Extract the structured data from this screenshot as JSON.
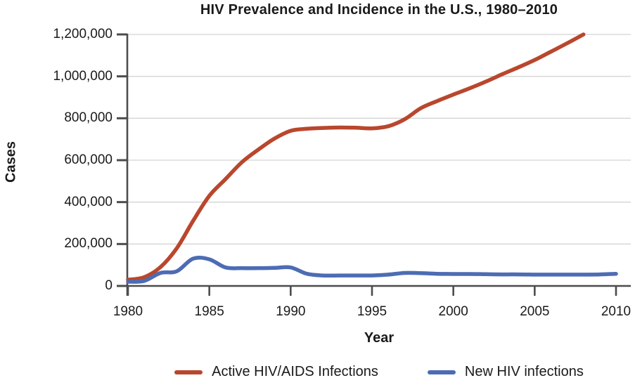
{
  "chart_data": {
    "type": "line",
    "title": "HIV Prevalence and Incidence in the U.S., 1980–2010",
    "xlabel": "Year",
    "ylabel": "Cases",
    "xlim": [
      1980,
      2010
    ],
    "ylim": [
      0,
      1200000
    ],
    "x_ticks": [
      1980,
      1985,
      1990,
      1995,
      2000,
      2005,
      2010
    ],
    "y_ticks": [
      0,
      200000,
      400000,
      600000,
      800000,
      1000000,
      1200000
    ],
    "y_tick_labels": [
      "0",
      "200,000",
      "400,000",
      "600,000",
      "800,000",
      "1,000,000",
      "1,200,000"
    ],
    "grid": "horizontal",
    "grid_color": "#d4d4d4",
    "axis_color": "#4c4c4e",
    "text_color": "#1a1a1a",
    "legend_position": "bottom",
    "series": [
      {
        "id": "active-hiv-aids-infections",
        "name": "Active HIV/AIDS Infections",
        "color": "#b9472d",
        "x": [
          1980,
          1981,
          1982,
          1983,
          1984,
          1985,
          1986,
          1987,
          1988,
          1989,
          1990,
          1991,
          1992,
          1993,
          1994,
          1995,
          1996,
          1997,
          1998,
          1999,
          2000,
          2001,
          2002,
          2003,
          2004,
          2005,
          2006,
          2007,
          2008
        ],
        "values": [
          30000,
          42000,
          90000,
          180000,
          310000,
          430000,
          510000,
          590000,
          650000,
          703000,
          740000,
          750000,
          754000,
          756000,
          755000,
          752000,
          762000,
          795000,
          848000,
          882000,
          913000,
          943000,
          975000,
          1010000,
          1043000,
          1078000,
          1118000,
          1158000,
          1200000
        ]
      },
      {
        "id": "new-hiv-infections",
        "name": "New HIV infections",
        "color": "#4d6cb4",
        "x": [
          1980,
          1981,
          1982,
          1983,
          1984,
          1985,
          1986,
          1987,
          1988,
          1989,
          1990,
          1991,
          1992,
          1993,
          1994,
          1995,
          1996,
          1997,
          1998,
          1999,
          2000,
          2001,
          2002,
          2003,
          2004,
          2005,
          2006,
          2007,
          2008,
          2009,
          2010
        ],
        "values": [
          20000,
          24000,
          62000,
          70000,
          130000,
          127000,
          88000,
          85000,
          85000,
          86000,
          88000,
          58000,
          50000,
          50000,
          50000,
          50000,
          54000,
          62000,
          61000,
          58000,
          57000,
          57000,
          56000,
          55000,
          55000,
          54000,
          54000,
          54000,
          54000,
          55000,
          58000
        ]
      }
    ]
  }
}
